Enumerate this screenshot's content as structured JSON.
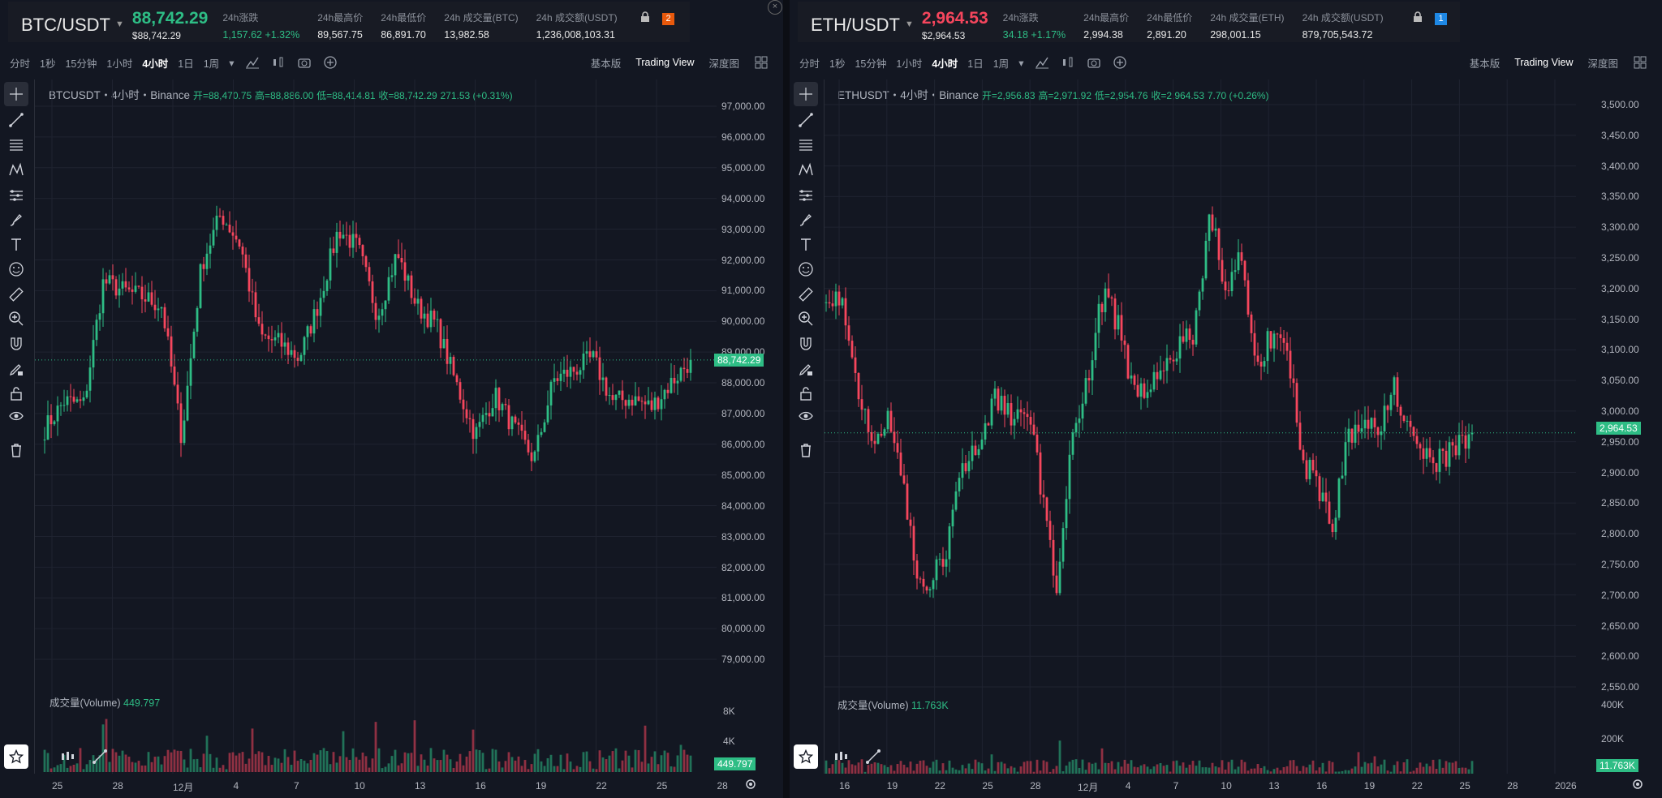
{
  "panels": [
    {
      "symbol": "BTC/USDT",
      "price": "88,742.29",
      "price_dir": "up",
      "price_usd": "$88,742.29",
      "stats": [
        {
          "label": "24h涨跌",
          "value": "1,157.62 +1.32%",
          "up": true
        },
        {
          "label": "24h最高价",
          "value": "89,567.75"
        },
        {
          "label": "24h最低价",
          "value": "86,891.70"
        },
        {
          "label": "24h 成交量(BTC)",
          "value": "13,982.58"
        },
        {
          "label": "24h 成交额(USDT)",
          "value": "1,236,008,103.31"
        }
      ],
      "badge": "2",
      "badge_color": "#e8590c",
      "timeframes": [
        "分时",
        "1秒",
        "15分钟",
        "1小时",
        "4小时",
        "1日",
        "1周"
      ],
      "active_tf": "4小时",
      "views": [
        "基本版",
        "Trading View",
        "深度图"
      ],
      "legend": {
        "title": "BTCUSDT・4小时・Binance",
        "open": "开=88,470.75",
        "high": "高=88,886.00",
        "low": "低=88,414.81",
        "close": "收=88,742.29",
        "change": "271.53 (+0.31%)"
      },
      "vol_label": "成交量(Volume)",
      "vol_value": "449.797",
      "vol_tag": "449.797",
      "price_tag": "88,742.29",
      "yticks": [
        "97,000.00",
        "96,000.00",
        "95,000.00",
        "94,000.00",
        "93,000.00",
        "92,000.00",
        "91,000.00",
        "90,000.00",
        "89,000.00",
        "88,000.00",
        "87,000.00",
        "86,000.00",
        "85,000.00",
        "84,000.00",
        "83,000.00",
        "82,000.00",
        "81,000.00",
        "80,000.00",
        "79,000.00"
      ],
      "vol_ticks": [
        "8K",
        "4K"
      ],
      "xticks": [
        "25",
        "28",
        "12月",
        "4",
        "7",
        "10",
        "13",
        "16",
        "19",
        "22",
        "25",
        "28"
      ]
    },
    {
      "symbol": "ETH/USDT",
      "price": "2,964.53",
      "price_dir": "down",
      "price_usd": "$2,964.53",
      "stats": [
        {
          "label": "24h涨跌",
          "value": "34.18 +1.17%",
          "up": true
        },
        {
          "label": "24h最高价",
          "value": "2,994.38"
        },
        {
          "label": "24h最低价",
          "value": "2,891.20"
        },
        {
          "label": "24h 成交量(ETH)",
          "value": "298,001.15"
        },
        {
          "label": "24h 成交额(USDT)",
          "value": "879,705,543.72"
        }
      ],
      "badge": "1",
      "badge_color": "#1e88e5",
      "timeframes": [
        "分时",
        "1秒",
        "15分钟",
        "1小时",
        "4小时",
        "1日",
        "1周"
      ],
      "active_tf": "4小时",
      "views": [
        "基本版",
        "Trading View",
        "深度图"
      ],
      "legend": {
        "title": "ETHUSDT・4小时・Binance",
        "open": "开=2,956.83",
        "high": "高=2,971.92",
        "low": "低=2,954.76",
        "close": "收=2,964.53",
        "change": "7.70 (+0.26%)"
      },
      "vol_label": "成交量(Volume)",
      "vol_value": "11.763K",
      "vol_tag": "11.763K",
      "price_tag": "2,964.53",
      "yticks": [
        "3,500.00",
        "3,450.00",
        "3,400.00",
        "3,350.00",
        "3,300.00",
        "3,250.00",
        "3,200.00",
        "3,150.00",
        "3,100.00",
        "3,050.00",
        "3,000.00",
        "2,950.00",
        "2,900.00",
        "2,850.00",
        "2,800.00",
        "2,750.00",
        "2,700.00",
        "2,650.00",
        "2,600.00",
        "2,550.00"
      ],
      "vol_ticks": [
        "400K",
        "200K"
      ],
      "xticks": [
        "16",
        "19",
        "22",
        "25",
        "28",
        "12月",
        "4",
        "7",
        "10",
        "13",
        "16",
        "19",
        "22",
        "25",
        "28",
        "2026"
      ]
    }
  ],
  "chart_data": [
    {
      "type": "candlestick",
      "title": "BTCUSDT・4小时・Binance",
      "ylim": [
        79000,
        97000
      ],
      "x_start": "24",
      "x_end": "27",
      "close_path": [
        {
          "x": "24",
          "y": 86500
        },
        {
          "x": "25",
          "y": 87400
        },
        {
          "x": "26",
          "y": 87300
        },
        {
          "x": "27",
          "y": 91300
        },
        {
          "x": "28",
          "y": 91000
        },
        {
          "x": "29",
          "y": 90800
        },
        {
          "x": "30",
          "y": 90500
        },
        {
          "x": "12月",
          "y": 86200
        },
        {
          "x": "2",
          "y": 91800
        },
        {
          "x": "3",
          "y": 93500
        },
        {
          "x": "4",
          "y": 92500
        },
        {
          "x": "5",
          "y": 89500
        },
        {
          "x": "6",
          "y": 89300
        },
        {
          "x": "7",
          "y": 88800
        },
        {
          "x": "8",
          "y": 90600
        },
        {
          "x": "9",
          "y": 93000
        },
        {
          "x": "10",
          "y": 92400
        },
        {
          "x": "11",
          "y": 90200
        },
        {
          "x": "12",
          "y": 92200
        },
        {
          "x": "13",
          "y": 90500
        },
        {
          "x": "14",
          "y": 89900
        },
        {
          "x": "15",
          "y": 88000
        },
        {
          "x": "16",
          "y": 86300
        },
        {
          "x": "17",
          "y": 87600
        },
        {
          "x": "18",
          "y": 86500
        },
        {
          "x": "19",
          "y": 85500
        },
        {
          "x": "20",
          "y": 88100
        },
        {
          "x": "21",
          "y": 88400
        },
        {
          "x": "22",
          "y": 88800
        },
        {
          "x": "23",
          "y": 87400
        },
        {
          "x": "24",
          "y": 87500
        },
        {
          "x": "25",
          "y": 87200
        },
        {
          "x": "26",
          "y": 88000
        },
        {
          "x": "27",
          "y": 88742.29
        }
      ],
      "last": 88742.29,
      "volume_last": 449.797
    },
    {
      "type": "candlestick",
      "title": "ETHUSDT・4小时・Binance",
      "ylim": [
        2550,
        3500
      ],
      "x_start": "15",
      "x_end": "27",
      "close_path": [
        {
          "x": "15",
          "y": 3200
        },
        {
          "x": "16",
          "y": 3180
        },
        {
          "x": "17",
          "y": 3050
        },
        {
          "x": "18",
          "y": 2950
        },
        {
          "x": "19",
          "y": 3000
        },
        {
          "x": "20",
          "y": 2880
        },
        {
          "x": "21",
          "y": 2720
        },
        {
          "x": "22",
          "y": 2730
        },
        {
          "x": "23",
          "y": 2790
        },
        {
          "x": "24",
          "y": 2920
        },
        {
          "x": "25",
          "y": 2960
        },
        {
          "x": "26",
          "y": 3020
        },
        {
          "x": "27",
          "y": 2990
        },
        {
          "x": "28",
          "y": 3020
        },
        {
          "x": "29",
          "y": 2870
        },
        {
          "x": "30",
          "y": 2720
        },
        {
          "x": "12月",
          "y": 2960
        },
        {
          "x": "2",
          "y": 3060
        },
        {
          "x": "3",
          "y": 3190
        },
        {
          "x": "4",
          "y": 3140
        },
        {
          "x": "5",
          "y": 3030
        },
        {
          "x": "6",
          "y": 3040
        },
        {
          "x": "7",
          "y": 3080
        },
        {
          "x": "8",
          "y": 3100
        },
        {
          "x": "9",
          "y": 3130
        },
        {
          "x": "10",
          "y": 3330
        },
        {
          "x": "11",
          "y": 3200
        },
        {
          "x": "12",
          "y": 3250
        },
        {
          "x": "13",
          "y": 3080
        },
        {
          "x": "14",
          "y": 3120
        },
        {
          "x": "15",
          "y": 3100
        },
        {
          "x": "16",
          "y": 2920
        },
        {
          "x": "17",
          "y": 2880
        },
        {
          "x": "18",
          "y": 2820
        },
        {
          "x": "19",
          "y": 2960
        },
        {
          "x": "20",
          "y": 2990
        },
        {
          "x": "21",
          "y": 2980
        },
        {
          "x": "22",
          "y": 3040
        },
        {
          "x": "23",
          "y": 2960
        },
        {
          "x": "24",
          "y": 2930
        },
        {
          "x": "25",
          "y": 2920
        },
        {
          "x": "26",
          "y": 2950
        },
        {
          "x": "27",
          "y": 2964.53
        }
      ],
      "last": 2964.53,
      "volume_last": 11763
    }
  ],
  "colors": {
    "up": "#2ebd85",
    "down": "#f6465d",
    "background": "#131722",
    "grid": "#1f2330"
  },
  "icons": {
    "toolbar": [
      "indicator-icon",
      "candle-type-icon",
      "camera-icon",
      "plus-circle-icon",
      "layout-grid-icon"
    ],
    "drawer": [
      "crosshair-icon",
      "trendline-icon",
      "fib-icon",
      "pattern-icon",
      "projection-icon",
      "brush-icon",
      "text-icon",
      "emoji-icon",
      "ruler-icon",
      "zoom-in-icon",
      "magnet-icon",
      "lock-draw-icon",
      "unlock-icon",
      "eye-icon",
      "trash-icon"
    ]
  }
}
